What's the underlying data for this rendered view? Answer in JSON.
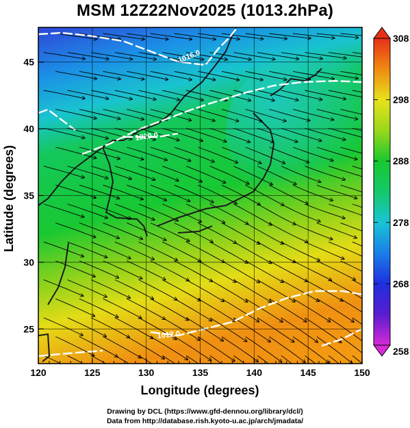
{
  "title": "MSM 12Z22Nov2025 (1013.2hPa)",
  "credits": {
    "line1": "Drawing by DCL (https://www.gfd-dennou.org/library/dcl/)",
    "line2": "Data from http://database.rish.kyoto-u.ac.jp/arch/jmadata/"
  },
  "chart_data": {
    "type": "heatmap",
    "title": "MSM 12Z22Nov2025 (1013.2hPa)",
    "xlabel": "Longitude (degrees)",
    "ylabel": "Latitude  (degrees)",
    "xlim": [
      120,
      150
    ],
    "ylim": [
      22.4,
      47.6
    ],
    "xticks": [
      "120",
      "125",
      "130",
      "135",
      "140",
      "145",
      "150"
    ],
    "yticks": [
      "25",
      "30",
      "35",
      "40",
      "45"
    ],
    "grid": true,
    "colorbar": {
      "range": [
        258,
        308
      ],
      "ticks": [
        "258",
        "268",
        "278",
        "288",
        "298",
        "308"
      ]
    },
    "contour_labels": [
      "1016.0",
      "1020.0",
      "1012.0"
    ],
    "overlay": "wind streamlines"
  },
  "colors": {
    "cold": "#2f46d8",
    "cool": "#18a9e8",
    "mid": "#12c842",
    "warm": "#e8e21a",
    "hot": "#f08a12",
    "contour": "#ffffff",
    "land": "#222222"
  }
}
